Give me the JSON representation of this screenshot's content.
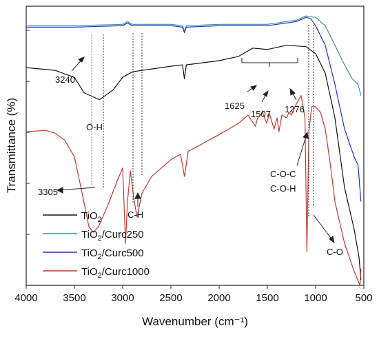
{
  "chart_data": {
    "type": "line",
    "xlabel": "Wavenumber (cm⁻¹)",
    "ylabel": "Transmittance (%)",
    "xlim": [
      4000,
      500
    ],
    "x_reversed": true,
    "y_tick_labels": "none",
    "grid": false,
    "legend_position": "bottom-left",
    "x_ticks": [
      "4000",
      "3500",
      "3000",
      "2500",
      "2000",
      "1500",
      "1000",
      "500"
    ],
    "series": [
      {
        "name": "TiO₂",
        "legend_main": "TiO",
        "legend_sub": "2",
        "color": "#111111",
        "points": [
          [
            4000,
            0.78
          ],
          [
            3700,
            0.77
          ],
          [
            3500,
            0.745
          ],
          [
            3400,
            0.69
          ],
          [
            3240,
            0.665
          ],
          [
            3100,
            0.7
          ],
          [
            3000,
            0.745
          ],
          [
            2900,
            0.765
          ],
          [
            2500,
            0.785
          ],
          [
            2380,
            0.79
          ],
          [
            2360,
            0.74
          ],
          [
            2340,
            0.79
          ],
          [
            2000,
            0.805
          ],
          [
            1800,
            0.82
          ],
          [
            1650,
            0.85
          ],
          [
            1500,
            0.845
          ],
          [
            1300,
            0.86
          ],
          [
            1100,
            0.855
          ],
          [
            1000,
            0.83
          ],
          [
            900,
            0.76
          ],
          [
            800,
            0.6
          ],
          [
            700,
            0.35
          ],
          [
            600,
            0.2
          ],
          [
            550,
            0.1
          ],
          [
            530,
            0.02
          ]
        ]
      },
      {
        "name": "TiO₂/Curc250",
        "legend_main": "TiO",
        "legend_sub": "2",
        "legend_rest": "/Curc250",
        "color": "#3b8ea5",
        "points": [
          [
            4000,
            0.93
          ],
          [
            3500,
            0.93
          ],
          [
            3000,
            0.935
          ],
          [
            2950,
            0.945
          ],
          [
            2900,
            0.935
          ],
          [
            2500,
            0.935
          ],
          [
            2380,
            0.93
          ],
          [
            2360,
            0.91
          ],
          [
            2340,
            0.93
          ],
          [
            2000,
            0.935
          ],
          [
            1500,
            0.935
          ],
          [
            1200,
            0.95
          ],
          [
            1100,
            0.965
          ],
          [
            1000,
            0.96
          ],
          [
            900,
            0.93
          ],
          [
            800,
            0.86
          ],
          [
            700,
            0.79
          ],
          [
            620,
            0.74
          ],
          [
            560,
            0.72
          ],
          [
            530,
            0.68
          ]
        ]
      },
      {
        "name": "TiO₂/Curc500",
        "legend_main": "TiO",
        "legend_sub": "2",
        "legend_rest": "/Curc500",
        "color": "#1a2fd6",
        "points": [
          [
            4000,
            0.925
          ],
          [
            3500,
            0.925
          ],
          [
            3000,
            0.93
          ],
          [
            2950,
            0.94
          ],
          [
            2900,
            0.93
          ],
          [
            2500,
            0.93
          ],
          [
            2380,
            0.925
          ],
          [
            2360,
            0.905
          ],
          [
            2340,
            0.925
          ],
          [
            2000,
            0.93
          ],
          [
            1500,
            0.93
          ],
          [
            1200,
            0.945
          ],
          [
            1100,
            0.96
          ],
          [
            1050,
            0.955
          ],
          [
            1000,
            0.93
          ],
          [
            900,
            0.86
          ],
          [
            800,
            0.72
          ],
          [
            700,
            0.56
          ],
          [
            600,
            0.46
          ],
          [
            560,
            0.43
          ],
          [
            530,
            0.3
          ]
        ]
      },
      {
        "name": "TiO₂/Curc1000",
        "legend_main": "TiO",
        "legend_sub": "2",
        "legend_rest": "/Curc1000",
        "color": "#c0392b",
        "points": [
          [
            4000,
            0.55
          ],
          [
            3800,
            0.555
          ],
          [
            3700,
            0.545
          ],
          [
            3600,
            0.52
          ],
          [
            3500,
            0.46
          ],
          [
            3420,
            0.33
          ],
          [
            3350,
            0.21
          ],
          [
            3305,
            0.19
          ],
          [
            3250,
            0.21
          ],
          [
            3150,
            0.29
          ],
          [
            3050,
            0.38
          ],
          [
            3000,
            0.42
          ],
          [
            2970,
            0.15
          ],
          [
            2950,
            0.3
          ],
          [
            2920,
            0.41
          ],
          [
            2880,
            0.3
          ],
          [
            2850,
            0.245
          ],
          [
            2800,
            0.33
          ],
          [
            2700,
            0.39
          ],
          [
            2600,
            0.42
          ],
          [
            2500,
            0.45
          ],
          [
            2400,
            0.47
          ],
          [
            2360,
            0.39
          ],
          [
            2320,
            0.48
          ],
          [
            2000,
            0.54
          ],
          [
            1800,
            0.58
          ],
          [
            1700,
            0.61
          ],
          [
            1625,
            0.57
          ],
          [
            1600,
            0.6
          ],
          [
            1550,
            0.62
          ],
          [
            1507,
            0.58
          ],
          [
            1480,
            0.615
          ],
          [
            1430,
            0.56
          ],
          [
            1400,
            0.6
          ],
          [
            1380,
            0.55
          ],
          [
            1350,
            0.61
          ],
          [
            1300,
            0.6
          ],
          [
            1276,
            0.62
          ],
          [
            1250,
            0.61
          ],
          [
            1200,
            0.65
          ],
          [
            1150,
            0.68
          ],
          [
            1110,
            0.6
          ],
          [
            1090,
            0.12
          ],
          [
            1070,
            0.55
          ],
          [
            1040,
            0.64
          ],
          [
            1000,
            0.64
          ],
          [
            950,
            0.62
          ],
          [
            900,
            0.56
          ],
          [
            850,
            0.44
          ],
          [
            800,
            0.3
          ],
          [
            700,
            0.15
          ],
          [
            600,
            0.05
          ],
          [
            540,
            0.0
          ],
          [
            530,
            0.06
          ]
        ]
      }
    ],
    "annotations": {
      "a3240": "3240",
      "a3305": "3305",
      "oh": "O-H",
      "ch": "C-H",
      "a1625": "1625",
      "a1507": "1507",
      "a1276": "1276",
      "coc": "C-O-C",
      "coh": "C-O-H",
      "co": "C-O"
    }
  }
}
